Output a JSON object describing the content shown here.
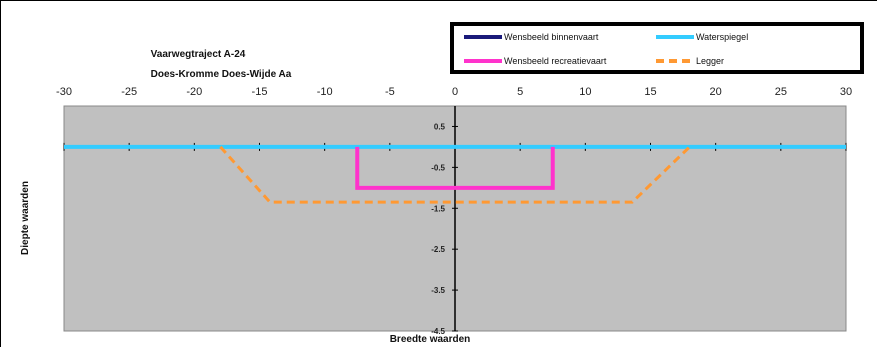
{
  "chart_data": {
    "type": "line",
    "title": "Vaarwegtraject A-24",
    "subtitle": "Does-Kromme  Does-Wijde Aa",
    "xlabel": "Breedte waarden",
    "ylabel": "Diepte waarden",
    "xlim": [
      -30,
      30
    ],
    "ylim": [
      -4.5,
      1.0
    ],
    "xticks": [
      -30,
      -25,
      -20,
      -15,
      -10,
      -5,
      0,
      5,
      10,
      15,
      20,
      25,
      30
    ],
    "xtick_labels": [
      "-30",
      "-25",
      "-20",
      "-15",
      "-10",
      "-5",
      "0",
      "5",
      "10",
      "15",
      "20",
      "25",
      "30"
    ],
    "yticks": [
      0.5,
      -0.5,
      -1.5,
      -2.5,
      -3.5,
      -4.5
    ],
    "ytick_labels": [
      "0.5",
      "-0.5",
      "-1.5",
      "-2.5",
      "-3.5",
      "-4.5"
    ],
    "grid": false,
    "legend_position": "top-right",
    "series": [
      {
        "name": "Wensbeeld binnenvaart",
        "color": "#1a1a7a",
        "style": "solid",
        "x": [],
        "y": []
      },
      {
        "name": "Waterspiegel",
        "color": "#33ccff",
        "style": "solid",
        "x": [
          -30,
          30
        ],
        "y": [
          0,
          0
        ]
      },
      {
        "name": "Wensbeeld recreatievaart",
        "color": "#ff33cc",
        "style": "solid",
        "x": [
          -7.5,
          -7.5,
          7.5,
          7.5
        ],
        "y": [
          0,
          -1.0,
          -1.0,
          0
        ]
      },
      {
        "name": "Legger",
        "color": "#ff9933",
        "style": "dashed",
        "x": [
          -18,
          -14.2,
          13.6,
          18
        ],
        "y": [
          0,
          -1.35,
          -1.35,
          0
        ]
      }
    ]
  }
}
